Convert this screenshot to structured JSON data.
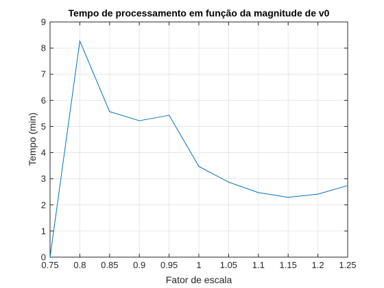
{
  "chart_data": {
    "type": "line",
    "title": "Tempo de processamento em função da magnitude de v0",
    "xlabel": "Fator de escala",
    "ylabel": "Tempo (min)",
    "xlim": [
      0.75,
      1.25
    ],
    "ylim": [
      0,
      9
    ],
    "xticks": [
      "0.75",
      "0.8",
      "0.85",
      "0.9",
      "0.95",
      "1",
      "1.05",
      "1.1",
      "1.15",
      "1.2",
      "1.25"
    ],
    "yticks": [
      "0",
      "1",
      "2",
      "3",
      "4",
      "5",
      "6",
      "7",
      "8",
      "9"
    ],
    "grid": true,
    "series": [
      {
        "x": [
          0.75,
          0.8,
          0.85,
          0.9,
          0.95,
          1.0,
          1.05,
          1.1,
          1.15,
          1.2,
          1.25
        ],
        "y": [
          0.0,
          8.27,
          5.57,
          5.22,
          5.43,
          3.47,
          2.87,
          2.47,
          2.29,
          2.41,
          2.74
        ]
      }
    ],
    "colors": {
      "line": "#0072BD",
      "grid": "#e6e6e6",
      "axis": "#262626"
    }
  }
}
